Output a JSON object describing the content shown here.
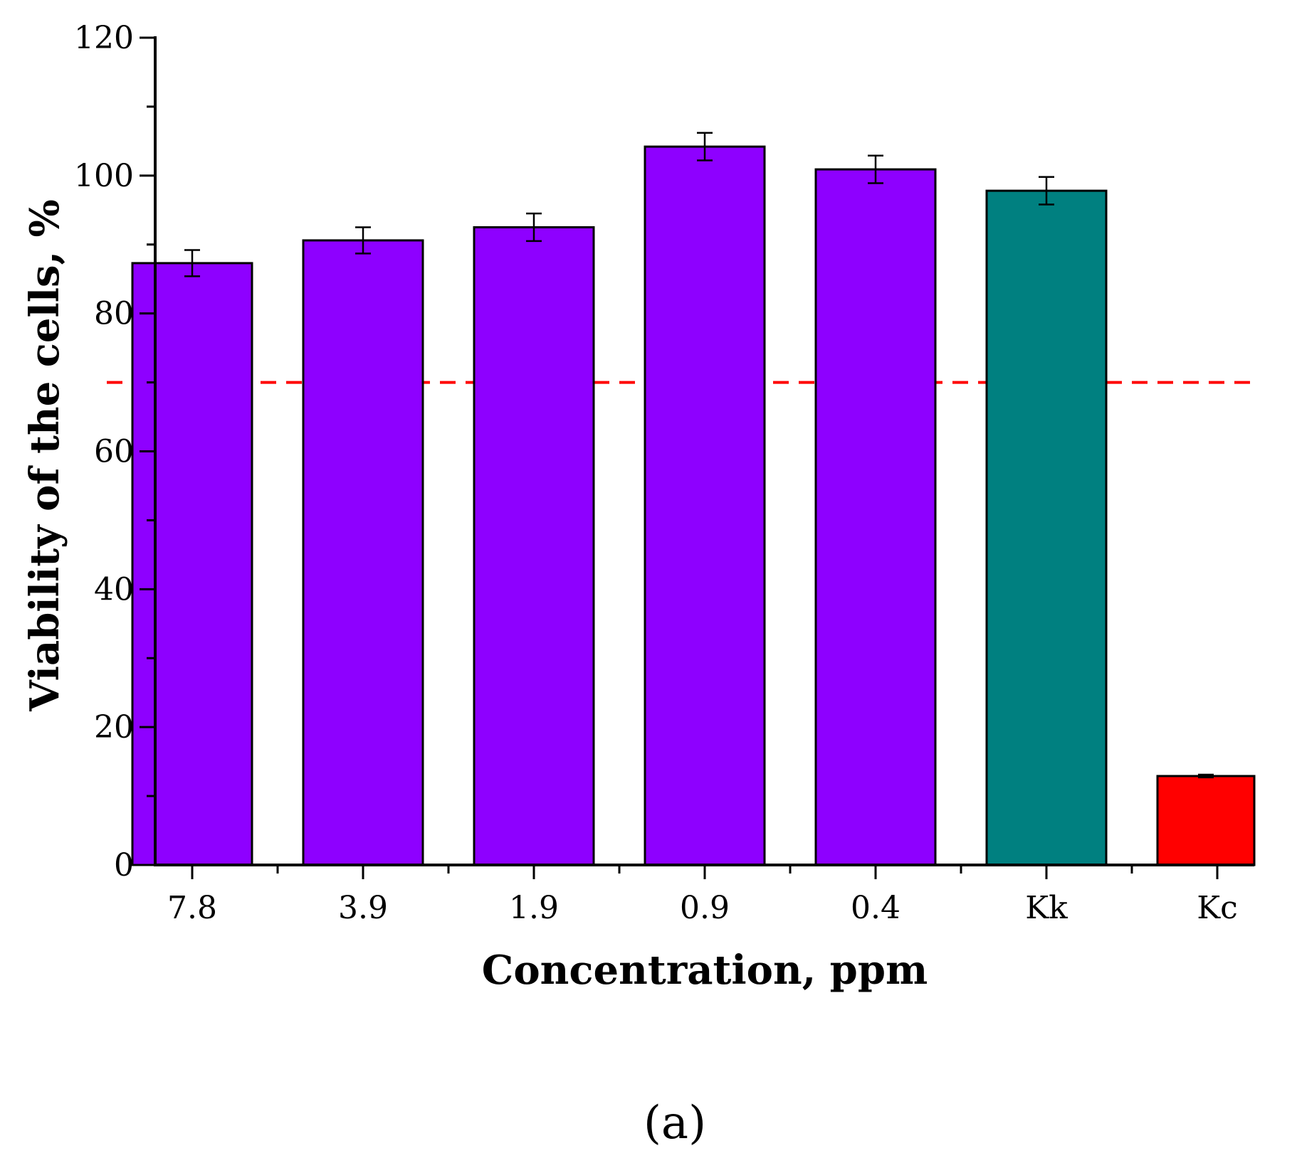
{
  "chart_data": {
    "type": "bar",
    "categories": [
      "7.8",
      "3.9",
      "1.9",
      "0.9",
      "0.4",
      "Kk",
      "Kc"
    ],
    "values": [
      87.3,
      90.6,
      92.5,
      104.2,
      100.9,
      97.8,
      12.9
    ],
    "errors": [
      1.9,
      1.9,
      2.0,
      2.0,
      2.0,
      2.0,
      0.2
    ],
    "bar_colors": [
      "#8e00ff",
      "#8e00ff",
      "#8e00ff",
      "#8e00ff",
      "#8e00ff",
      "#008080",
      "#ff0000"
    ],
    "xlabel": "Concentration, ppm",
    "ylabel": "Viability of the cells, %",
    "ylim": [
      0,
      120
    ],
    "yticks": [
      0,
      20,
      40,
      60,
      80,
      100,
      120
    ],
    "threshold": {
      "value": 70,
      "color": "#ff0000",
      "style": "dashed"
    },
    "grid": false,
    "legend": "none"
  },
  "figure": {
    "panel_label": "(a)"
  }
}
